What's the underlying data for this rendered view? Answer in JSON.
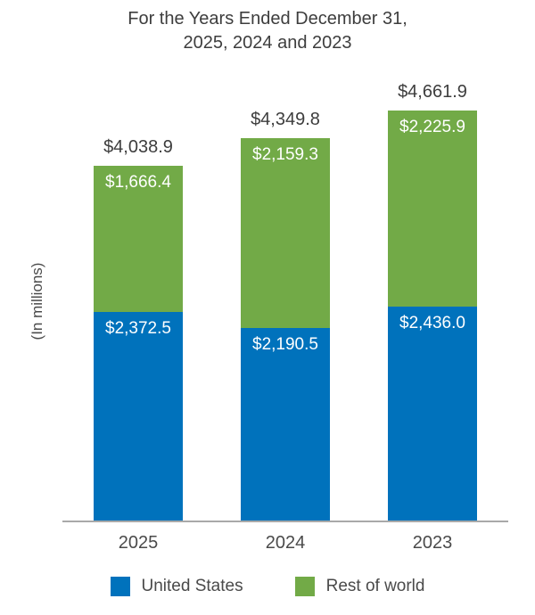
{
  "title": {
    "line1": "For the Years Ended December 31,",
    "line2": "2025, 2024 and 2023"
  },
  "ylabel": "(In millions)",
  "chart_data": {
    "type": "bar",
    "stacked": true,
    "title": "For the Years Ended December 31, 2025, 2024 and 2023",
    "xlabel": "",
    "ylabel": "(In millions)",
    "ylim": [
      0,
      4700
    ],
    "grid": false,
    "legend_position": "bottom",
    "categories": [
      "2025",
      "2024",
      "2023"
    ],
    "series": [
      {
        "name": "United States",
        "color": "#0072bc",
        "values": [
          2372.5,
          2190.5,
          2436.0
        ],
        "labels": [
          "$2,372.5",
          "$2,190.5",
          "$2,436.0"
        ]
      },
      {
        "name": "Rest of world",
        "color": "#72aa47",
        "values": [
          1666.4,
          2159.3,
          2225.9
        ],
        "labels": [
          "$1,666.4",
          "$2,159.3",
          "$2,225.9"
        ]
      }
    ],
    "totals": [
      4038.9,
      4349.8,
      4661.9
    ],
    "total_labels": [
      "$4,038.9",
      "$4,349.8",
      "$4,661.9"
    ]
  },
  "legend": [
    {
      "label": "United States",
      "color": "#0072bc"
    },
    {
      "label": "Rest of world",
      "color": "#72aa47"
    }
  ]
}
